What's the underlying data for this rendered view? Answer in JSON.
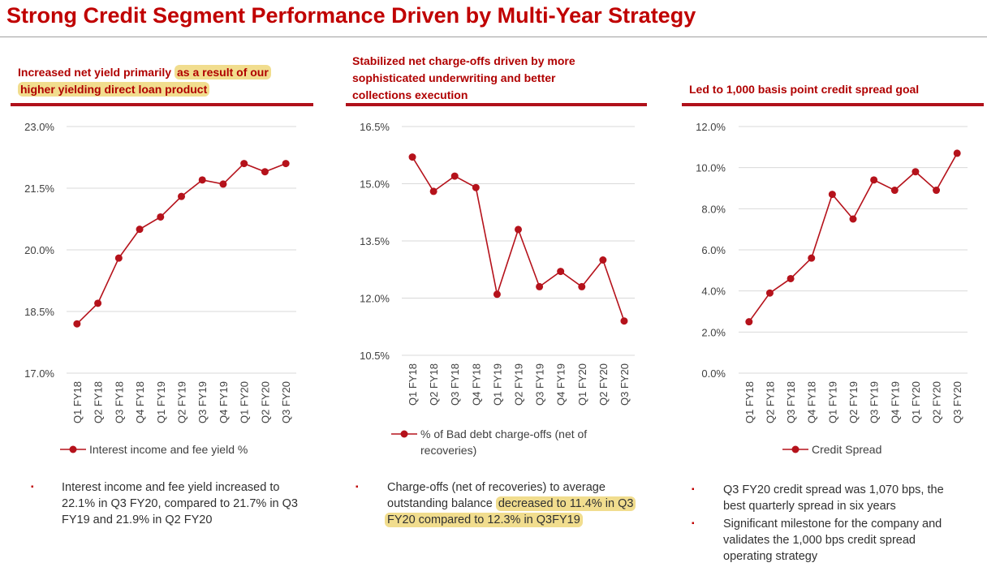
{
  "title": "Strong Credit Segment Performance Driven by Multi-Year Strategy",
  "panels": [
    {
      "heading_plain": "Increased net yield primarily ",
      "heading_highlight_1": "as a result of our",
      "heading_highlight_2": "higher yielding direct loan product",
      "bullet_parts": [
        "Interest income and fee yield increased to",
        "22.1% in Q3 FY20, compared to 21.7% in Q3",
        "FY19 and 21.9% in Q2 FY20"
      ]
    },
    {
      "heading_lines": [
        "Stabilized net charge-offs driven by more",
        "sophisticated underwriting and better",
        "collections execution"
      ],
      "bullet_line1": "Charge-offs (net of recoveries) to average",
      "bullet_line2_plain": "outstanding balance ",
      "bullet_line2_hl": "decreased to 11.4% in Q3",
      "bullet_line3_hl": "FY20 compared to 12.3% in Q3FY19"
    },
    {
      "heading": "Led to 1,000 basis point credit spread goal",
      "bullet1_lines": [
        "Q3 FY20 credit spread was 1,070 bps, the",
        "best quarterly spread in six years"
      ],
      "bullet2_lines": [
        "Significant milestone for the company and",
        "validates the 1,000 bps credit spread",
        "operating strategy"
      ]
    }
  ],
  "colors": {
    "accent": "#c00000",
    "line": "#b5121b",
    "highlight": "#f1dd8e",
    "grid": "#d9d9d9",
    "text": "#404040"
  },
  "bullet_marker": "▪",
  "chart_data": [
    {
      "type": "line",
      "title": "Increased net yield primarily as a result of our higher yielding direct loan product",
      "categories": [
        "Q1 FY18",
        "Q2 FY18",
        "Q3 FY18",
        "Q4 FY18",
        "Q1 FY19",
        "Q2 FY19",
        "Q3 FY19",
        "Q4 FY19",
        "Q1 FY20",
        "Q2 FY20",
        "Q3 FY20"
      ],
      "series": [
        {
          "name": "Interest income and fee yield %",
          "values": [
            18.2,
            18.7,
            19.8,
            20.5,
            20.8,
            21.3,
            21.7,
            21.6,
            22.1,
            21.9,
            22.1
          ]
        }
      ],
      "yticks": [
        "23.0%",
        "21.5%",
        "20.0%",
        "18.5%",
        "17.0%"
      ],
      "ylim": [
        17.0,
        23.0
      ],
      "legend": [
        "Interest income and fee yield %"
      ]
    },
    {
      "type": "line",
      "title": "Stabilized net charge-offs driven by more sophisticated underwriting and better collections execution",
      "categories": [
        "Q1 FY18",
        "Q2 FY18",
        "Q3 FY18",
        "Q4 FY18",
        "Q1 FY19",
        "Q2 FY19",
        "Q3 FY19",
        "Q4 FY19",
        "Q1 FY20",
        "Q2 FY20",
        "Q3 FY20"
      ],
      "series": [
        {
          "name": "% of Bad debt charge-offs (net of recoveries)",
          "values": [
            15.7,
            14.8,
            15.2,
            14.9,
            12.1,
            13.8,
            12.3,
            12.7,
            12.3,
            13.0,
            11.4
          ]
        }
      ],
      "yticks": [
        "16.5%",
        "15.0%",
        "13.5%",
        "12.0%",
        "10.5%"
      ],
      "ylim": [
        10.5,
        16.5
      ],
      "legend": [
        "% of Bad debt charge-offs (net of",
        "recoveries)"
      ]
    },
    {
      "type": "line",
      "title": "Led to 1,000 basis point credit spread goal",
      "categories": [
        "Q1 FY18",
        "Q2 FY18",
        "Q3 FY18",
        "Q4 FY18",
        "Q1 FY19",
        "Q2 FY19",
        "Q3 FY19",
        "Q4 FY19",
        "Q1 FY20",
        "Q2 FY20",
        "Q3 FY20"
      ],
      "series": [
        {
          "name": "Credit Spread",
          "values": [
            2.5,
            3.9,
            4.6,
            5.6,
            8.7,
            7.5,
            9.4,
            8.9,
            9.8,
            8.9,
            10.7
          ]
        }
      ],
      "yticks": [
        "12.0%",
        "10.0%",
        "8.0%",
        "6.0%",
        "4.0%",
        "2.0%",
        "0.0%"
      ],
      "ylim": [
        0.0,
        12.0
      ],
      "legend": [
        "Credit Spread"
      ]
    }
  ]
}
